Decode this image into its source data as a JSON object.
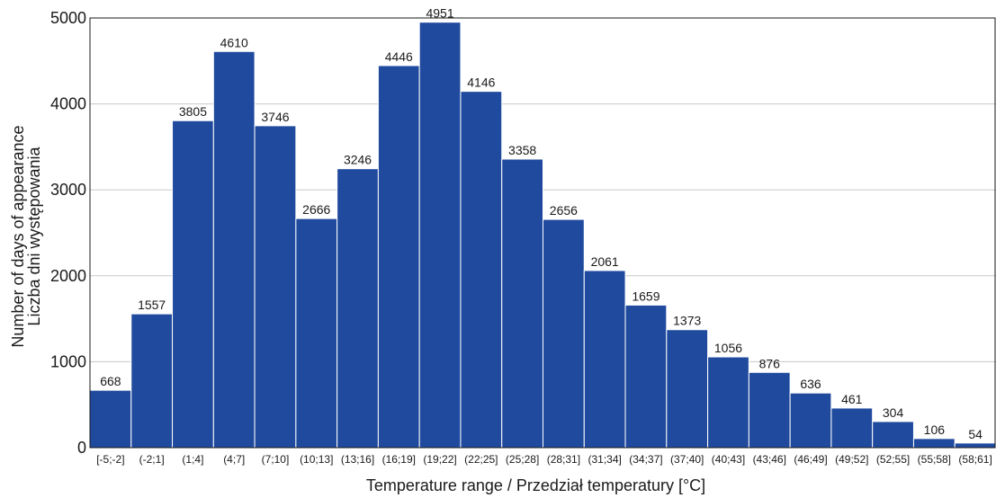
{
  "chart_data": {
    "type": "bar",
    "categories": [
      "[-5;-2]",
      "(-2;1]",
      "(1;4]",
      "(4;7]",
      "(7;10]",
      "(10;13]",
      "(13;16]",
      "(16;19]",
      "(19;22]",
      "(22;25]",
      "(25;28]",
      "(28;31]",
      "(31;34]",
      "(34;37]",
      "(37;40]",
      "(40;43]",
      "(43;46]",
      "(46;49]",
      "(49;52]",
      "(52;55]",
      "(55;58]",
      "(58;61]"
    ],
    "values": [
      668,
      1557,
      3805,
      4610,
      3746,
      2666,
      3246,
      4446,
      4951,
      4146,
      3358,
      2656,
      2061,
      1659,
      1373,
      1056,
      876,
      636,
      461,
      304,
      106,
      54
    ],
    "xlabel": "Temperature range / Przedział temperatury [°C]",
    "ylabel_lines": [
      "Number of days of appearance",
      "Liczba dni występowania"
    ],
    "ylim": [
      0,
      5000
    ],
    "yticks": [
      0,
      1000,
      2000,
      3000,
      4000,
      5000
    ],
    "grid": true,
    "bar_color": "#1f4a9e",
    "grid_color": "#c8c8c8"
  }
}
